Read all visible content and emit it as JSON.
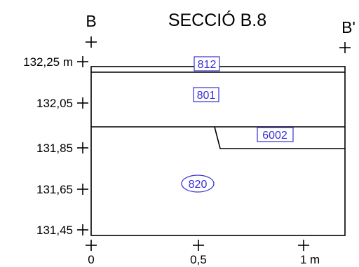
{
  "section": {
    "title": "SECCIÓ B.8",
    "start_label": "B",
    "end_label": "B'"
  },
  "elevation_axis": {
    "labels": [
      "132,25 m",
      "132,05",
      "131,85",
      "131,65",
      "131,45"
    ]
  },
  "distance_axis": {
    "labels": [
      "0",
      "0,5",
      "1 m"
    ]
  },
  "units": [
    {
      "id": "812",
      "shape": "box"
    },
    {
      "id": "801",
      "shape": "box"
    },
    {
      "id": "6002",
      "shape": "box"
    },
    {
      "id": "820",
      "shape": "ellipse"
    }
  ],
  "colors": {
    "lines": "#000000",
    "unit_labels": "#3a2fd6"
  }
}
